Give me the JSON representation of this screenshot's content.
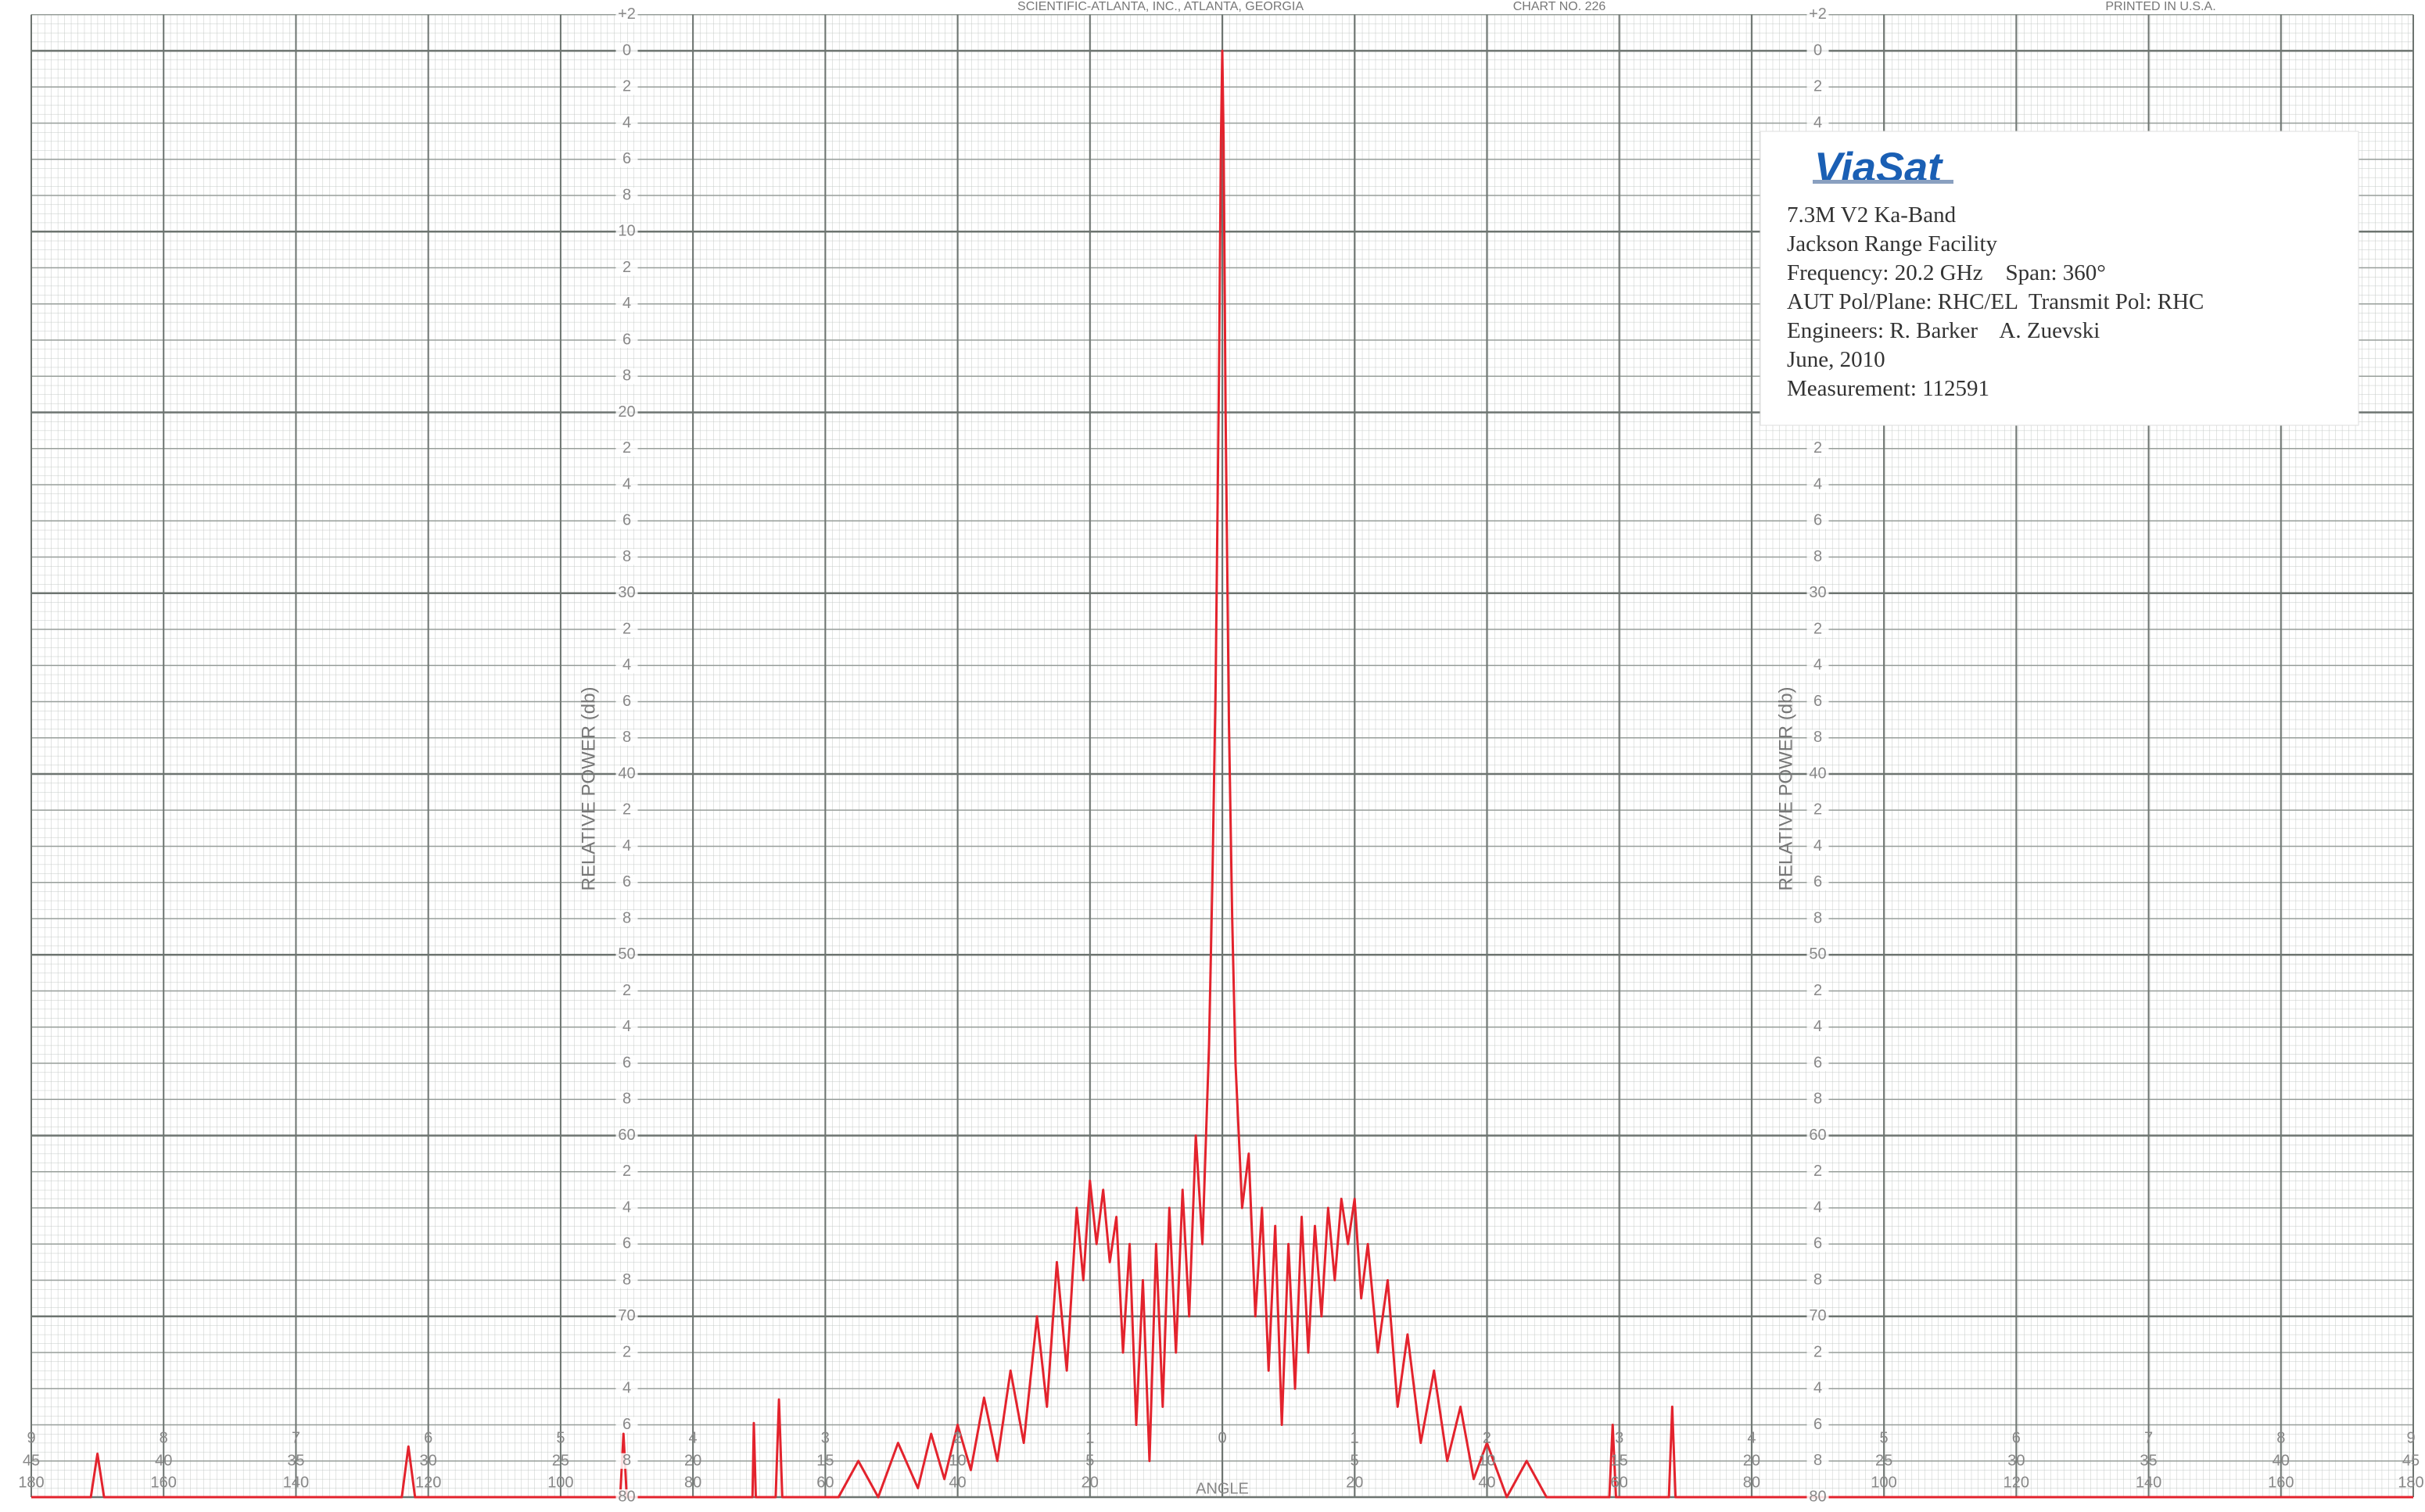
{
  "chart_data": {
    "type": "line",
    "header_texts": [
      "SCIENTIFIC-ATLANTA, INC., ATLANTA, GEORGIA",
      "CHART NO. 226",
      "PRINTED IN U.S.A."
    ],
    "y_label": "RELATIVE POWER (db)",
    "x_label": "ANGLE",
    "logo": "ViaSat",
    "annotations": [
      "7.3M V2 Ka-Band",
      "Jackson Range Facility",
      "Frequency: 20.2 GHz    Span: 360°",
      "AUT Pol/Plane: RHC/EL  Transmit Pol: RHC",
      "Engineers: R. Barker    A. Zuevski",
      "June, 2010",
      "Measurement: 112591"
    ],
    "color": "#e3232d",
    "grid": true,
    "xlim": [
      -180,
      180
    ],
    "ylim": [
      -80,
      2
    ],
    "xticks": [
      {
        "value": -180,
        "label": "9"
      },
      {
        "value": -160,
        "label": "8"
      },
      {
        "value": -140,
        "label": "7"
      },
      {
        "value": -120,
        "label": "6"
      },
      {
        "value": -100,
        "label": "5"
      },
      {
        "value": -80,
        "label": "4"
      },
      {
        "value": -60,
        "label": "3"
      },
      {
        "value": -40,
        "label": "2"
      },
      {
        "value": -20,
        "label": "1"
      },
      0,
      {
        "value": 20,
        "label": "1"
      },
      {
        "value": 40,
        "label": "2"
      },
      {
        "value": 60,
        "label": "3"
      },
      {
        "value": 80,
        "label": "4"
      },
      {
        "value": 100,
        "label": "5"
      },
      {
        "value": 120,
        "label": "6"
      },
      {
        "value": 140,
        "label": "7"
      },
      {
        "value": 160,
        "label": "8"
      },
      {
        "value": 180,
        "label": "9"
      }
    ],
    "x_scale_labels_2": [
      "45",
      "40",
      "35",
      "30",
      "25",
      "20",
      "15",
      "10",
      "5",
      null,
      "5",
      "10",
      "15",
      "20",
      "25",
      "30",
      "35",
      "40",
      "45"
    ],
    "x_scale_labels_3": [
      "180",
      "160",
      "140",
      "120",
      "100",
      "80",
      "60",
      "40",
      "20",
      null,
      "20",
      "40",
      "60",
      "80",
      "100",
      "120",
      "140",
      "160",
      "180"
    ],
    "yticks": [
      {
        "value": 2,
        "label": "+2"
      },
      0,
      {
        "value": -2,
        "label": "2"
      },
      {
        "value": -4,
        "label": "4"
      },
      {
        "value": -6,
        "label": "6"
      },
      {
        "value": -8,
        "label": "8"
      },
      {
        "value": -10,
        "label": "10"
      },
      {
        "value": -12,
        "label": "2"
      },
      {
        "value": -14,
        "label": "4"
      },
      {
        "value": -16,
        "label": "6"
      },
      {
        "value": -18,
        "label": "8"
      },
      {
        "value": -20,
        "label": "20"
      },
      {
        "value": -22,
        "label": "2"
      },
      {
        "value": -24,
        "label": "4"
      },
      {
        "value": -26,
        "label": "6"
      },
      {
        "value": -28,
        "label": "8"
      },
      {
        "value": -30,
        "label": "30"
      },
      {
        "value": -32,
        "label": "2"
      },
      {
        "value": -34,
        "label": "4"
      },
      {
        "value": -36,
        "label": "6"
      },
      {
        "value": -38,
        "label": "8"
      },
      {
        "value": -40,
        "label": "40"
      },
      {
        "value": -42,
        "label": "2"
      },
      {
        "value": -44,
        "label": "4"
      },
      {
        "value": -46,
        "label": "6"
      },
      {
        "value": -48,
        "label": "8"
      },
      {
        "value": -50,
        "label": "50"
      },
      {
        "value": -52,
        "label": "2"
      },
      {
        "value": -54,
        "label": "4"
      },
      {
        "value": -56,
        "label": "6"
      },
      {
        "value": -58,
        "label": "8"
      },
      {
        "value": -60,
        "label": "60"
      },
      {
        "value": -62,
        "label": "2"
      },
      {
        "value": -64,
        "label": "4"
      },
      {
        "value": -66,
        "label": "6"
      },
      {
        "value": -68,
        "label": "8"
      },
      {
        "value": -70,
        "label": "70"
      },
      {
        "value": -72,
        "label": "2"
      },
      {
        "value": -74,
        "label": "4"
      },
      {
        "value": -76,
        "label": "6"
      },
      {
        "value": -78,
        "label": "8"
      },
      {
        "value": -80,
        "label": "80"
      }
    ],
    "x": [
      -180,
      -171,
      -170,
      -169,
      -124,
      -123,
      -122,
      -91,
      -90.5,
      -90,
      -71,
      -70.8,
      -70.5,
      -67.5,
      -67,
      -66.5,
      -58,
      -55,
      -52,
      -49,
      -46,
      -44,
      -42,
      -40,
      -38,
      -36,
      -34,
      -32,
      -30,
      -28,
      -26.5,
      -25,
      -23.5,
      -22,
      -21,
      -20,
      -19,
      -18,
      -17,
      -16,
      -15,
      -14,
      -13,
      -12,
      -11,
      -10,
      -9,
      -8,
      -7,
      -6,
      -5,
      -4,
      -3,
      -2,
      -1.5,
      -1,
      -0.5,
      -0.2,
      0,
      0.2,
      0.5,
      1,
      1.5,
      2,
      3,
      4,
      5,
      6,
      7,
      8,
      9,
      10,
      11,
      12,
      13,
      14,
      15,
      16,
      17,
      18,
      19,
      20,
      21,
      22,
      23.5,
      25,
      26.5,
      28,
      30,
      32,
      34,
      36,
      38,
      40,
      43,
      46,
      49,
      58.5,
      59,
      59.5,
      67.5,
      68,
      68.5,
      180
    ],
    "values": [
      -80,
      -80,
      -77.6,
      -80,
      -80,
      -77.2,
      -80,
      -80,
      -76.5,
      -80,
      -80,
      -75.9,
      -80,
      -80,
      -74.6,
      -80,
      -80,
      -78,
      -80,
      -77,
      -79.5,
      -76.5,
      -79,
      -76,
      -78.5,
      -74.5,
      -78,
      -73,
      -77,
      -70,
      -75,
      -67,
      -73,
      -64,
      -68,
      -62.5,
      -66,
      -63,
      -67,
      -64.5,
      -72,
      -66,
      -76,
      -68,
      -78,
      -66,
      -75,
      -64,
      -72,
      -63,
      -70,
      -60,
      -66,
      -55,
      -46,
      -35,
      -18,
      -5,
      0,
      -5,
      -20,
      -37,
      -48,
      -56,
      -64,
      -61,
      -70,
      -64,
      -73,
      -65,
      -76,
      -66,
      -74,
      -64.5,
      -72,
      -65,
      -70,
      -64,
      -68,
      -63.5,
      -66,
      -63.5,
      -69,
      -66,
      -72,
      -68,
      -75,
      -71,
      -77,
      -73,
      -78,
      -75,
      -79,
      -77,
      -80,
      -78,
      -80,
      -80,
      -76,
      -80,
      -80,
      -75,
      -80,
      -80
    ]
  }
}
